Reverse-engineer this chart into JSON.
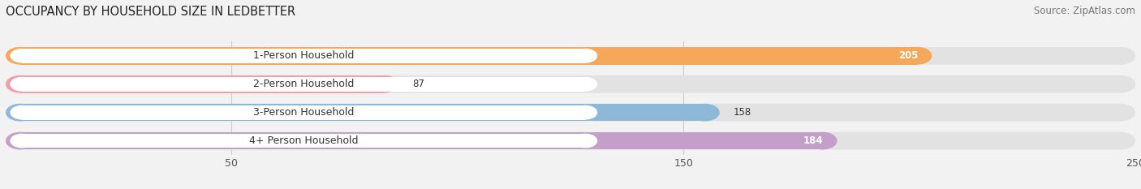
{
  "title": "OCCUPANCY BY HOUSEHOLD SIZE IN LEDBETTER",
  "source": "Source: ZipAtlas.com",
  "categories": [
    "1-Person Household",
    "2-Person Household",
    "3-Person Household",
    "4+ Person Household"
  ],
  "values": [
    205,
    87,
    158,
    184
  ],
  "bar_colors": [
    "#F5A85B",
    "#F0A0A8",
    "#8DB8D8",
    "#C49FCA"
  ],
  "value_text_colors": [
    "white",
    "#555555",
    "#555555",
    "white"
  ],
  "xlim": [
    0,
    250
  ],
  "xticks": [
    50,
    150,
    250
  ],
  "background_color": "#f2f2f2",
  "bar_bg_color": "#e2e2e2",
  "label_bg_color": "#ffffff",
  "title_fontsize": 10.5,
  "source_fontsize": 8.5,
  "tick_fontsize": 9,
  "label_fontsize": 9,
  "value_fontsize": 8.5,
  "figsize": [
    14.06,
    2.33
  ],
  "dpi": 100
}
